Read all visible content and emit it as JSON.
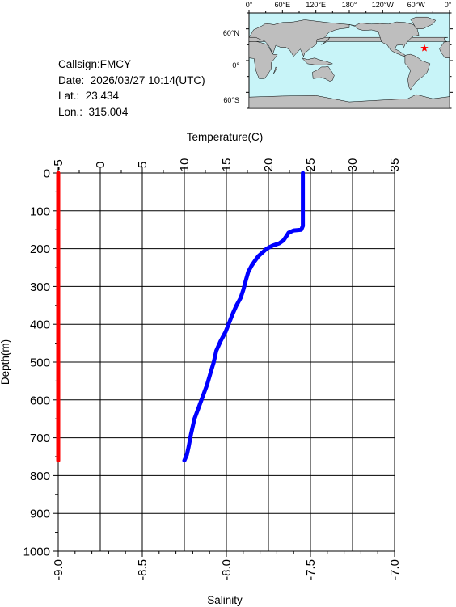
{
  "meta": {
    "callsign": "Callsign:FMCY",
    "date": "Date:  2026/03/27 10:14(UTC)",
    "lat": "Lat.:  23.434",
    "lon": "Lon.:  315.004"
  },
  "map": {
    "lon_labels": [
      "0°",
      "60°E",
      "120°E",
      "180°",
      "120°W",
      "60°W",
      "0°"
    ],
    "lat_labels": [
      "60°N",
      "0°",
      "60°S"
    ],
    "ocean_color": "#c8f4f8",
    "land_color": "#bebebe",
    "marker": {
      "lon": 315.004,
      "lat": 23.434,
      "color": "#ff0000",
      "icon": "star-icon"
    }
  },
  "chart_data": {
    "type": "line",
    "title": "",
    "top_axis_label": "Temperature(C)",
    "bottom_axis_label": "Salinity",
    "ylabel": "Depth(m)",
    "temperature_range": [
      -5,
      35
    ],
    "temperature_ticks": [
      "-5",
      "0",
      "5",
      "10",
      "15",
      "20",
      "25",
      "30",
      "35"
    ],
    "salinity_range": [
      -9.0,
      -7.0
    ],
    "salinity_ticks": [
      "-9.0",
      "-8.5",
      "-8.0",
      "-7.5",
      "-7.0"
    ],
    "depth_range": [
      0,
      1000
    ],
    "depth_ticks": [
      "0",
      "100",
      "200",
      "300",
      "400",
      "500",
      "600",
      "700",
      "800",
      "900",
      "1000"
    ],
    "grid": true,
    "series": [
      {
        "name": "Temperature",
        "color": "#0000ff",
        "axis": "top",
        "points": [
          [
            24.1,
            0
          ],
          [
            24.1,
            20
          ],
          [
            24.1,
            50
          ],
          [
            24.1,
            80
          ],
          [
            24.1,
            110
          ],
          [
            24.1,
            140
          ],
          [
            23.9,
            150
          ],
          [
            23.0,
            152
          ],
          [
            22.4,
            158
          ],
          [
            22.2,
            165
          ],
          [
            21.8,
            178
          ],
          [
            21.3,
            186
          ],
          [
            20.5,
            192
          ],
          [
            19.8,
            200
          ],
          [
            19.3,
            210
          ],
          [
            18.8,
            220
          ],
          [
            18.4,
            232
          ],
          [
            18.0,
            245
          ],
          [
            17.6,
            262
          ],
          [
            17.3,
            285
          ],
          [
            17.0,
            310
          ],
          [
            16.7,
            330
          ],
          [
            16.2,
            350
          ],
          [
            15.8,
            370
          ],
          [
            15.4,
            392
          ],
          [
            14.9,
            420
          ],
          [
            14.3,
            445
          ],
          [
            13.8,
            470
          ],
          [
            13.5,
            500
          ],
          [
            13.1,
            530
          ],
          [
            12.7,
            560
          ],
          [
            12.2,
            590
          ],
          [
            11.7,
            620
          ],
          [
            11.2,
            650
          ],
          [
            10.8,
            690
          ],
          [
            10.5,
            725
          ],
          [
            10.3,
            745
          ],
          [
            10.0,
            760
          ]
        ]
      },
      {
        "name": "Salinity",
        "color": "#ff0000",
        "axis": "bottom",
        "points": [
          [
            -9.0,
            0
          ],
          [
            -9.0,
            760
          ]
        ]
      }
    ]
  }
}
